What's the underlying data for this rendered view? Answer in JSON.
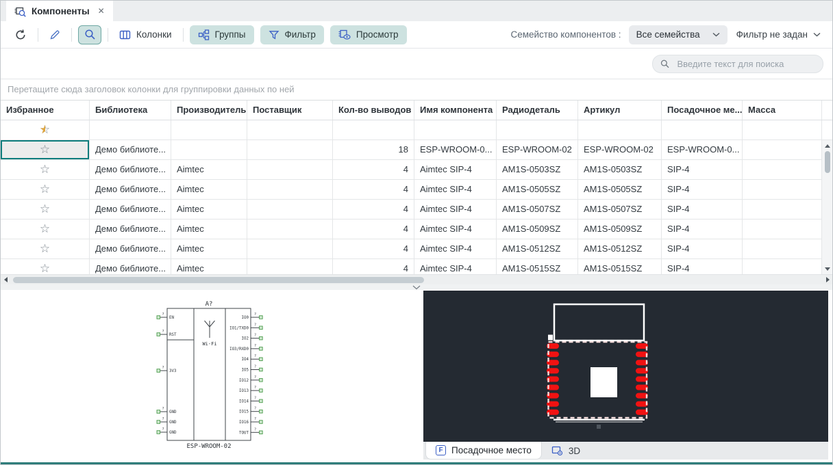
{
  "tab": {
    "title": "Компоненты"
  },
  "toolbar": {
    "columns_label": "Колонки",
    "groups_label": "Группы",
    "filter_label": "Фильтр",
    "preview_label": "Просмотр",
    "family_label": "Семейство компонентов :",
    "family_value": "Все семейства",
    "filter_status": "Фильтр не задан"
  },
  "search": {
    "placeholder": "Введите текст для поиска"
  },
  "group_hint": "Перетащите сюда заголовок колонки для группировки данных по ней",
  "table": {
    "columns": [
      "Избранное",
      "Библиотека",
      "Производитель",
      "Поставщик",
      "Кол-во выводов",
      "Имя компонента",
      "Радиодеталь",
      "Артикул",
      "Посадочное ме...",
      "Масса"
    ],
    "rows": [
      {
        "selected": true,
        "library": "Демо библиоте...",
        "manufacturer": "",
        "supplier": "",
        "pin_count": "18",
        "component_name": "ESP-WROOM-0...",
        "part": "ESP-WROOM-02",
        "article": "ESP-WROOM-02",
        "footprint": "ESP-WROOM-0...",
        "mass": ""
      },
      {
        "selected": false,
        "library": "Демо библиоте...",
        "manufacturer": "Aimtec",
        "supplier": "",
        "pin_count": "4",
        "component_name": "Aimtec SIP-4",
        "part": "AM1S-0503SZ",
        "article": "AM1S-0503SZ",
        "footprint": "SIP-4",
        "mass": ""
      },
      {
        "selected": false,
        "library": "Демо библиоте...",
        "manufacturer": "Aimtec",
        "supplier": "",
        "pin_count": "4",
        "component_name": "Aimtec SIP-4",
        "part": "AM1S-0505SZ",
        "article": "AM1S-0505SZ",
        "footprint": "SIP-4",
        "mass": ""
      },
      {
        "selected": false,
        "library": "Демо библиоте...",
        "manufacturer": "Aimtec",
        "supplier": "",
        "pin_count": "4",
        "component_name": "Aimtec SIP-4",
        "part": "AM1S-0507SZ",
        "article": "AM1S-0507SZ",
        "footprint": "SIP-4",
        "mass": ""
      },
      {
        "selected": false,
        "library": "Демо библиоте...",
        "manufacturer": "Aimtec",
        "supplier": "",
        "pin_count": "4",
        "component_name": "Aimtec SIP-4",
        "part": "AM1S-0509SZ",
        "article": "AM1S-0509SZ",
        "footprint": "SIP-4",
        "mass": ""
      },
      {
        "selected": false,
        "library": "Демо библиоте...",
        "manufacturer": "Aimtec",
        "supplier": "",
        "pin_count": "4",
        "component_name": "Aimtec SIP-4",
        "part": "AM1S-0512SZ",
        "article": "AM1S-0512SZ",
        "footprint": "SIP-4",
        "mass": ""
      },
      {
        "selected": false,
        "library": "Демо библиоте...",
        "manufacturer": "Aimtec",
        "supplier": "",
        "pin_count": "4",
        "component_name": "Aimtec SIP-4",
        "part": "AM1S-0515SZ",
        "article": "AM1S-0515SZ",
        "footprint": "SIP-4",
        "mass": ""
      }
    ]
  },
  "symbol": {
    "designator": "A?",
    "center_label": "Wi-Fi",
    "name": "ESP-WROOM-02",
    "pin_number_placeholder": "?",
    "left_pins": [
      "EN",
      "RST",
      "3V3",
      "GND",
      "GND",
      "GND"
    ],
    "right_pins": [
      "IO0",
      "IO1/TXD0",
      "IO2",
      "IO3/RXD0",
      "IO4",
      "IO5",
      "IO12",
      "IO13",
      "IO14",
      "IO15",
      "IO16",
      "TOUT"
    ]
  },
  "footprint": {
    "pads_per_side": 9
  },
  "bottom_tabs": {
    "footprint_label": "Посадочное место",
    "three_d_label": "3D"
  },
  "colors": {
    "accent_teal": "#0d7c7c",
    "button_teal": "#cde2e0",
    "icon_blue": "#3b5fc5",
    "pad_red": "#f11212",
    "canvas_dark": "#242a32",
    "favorite_gold": "#e0a63e"
  }
}
